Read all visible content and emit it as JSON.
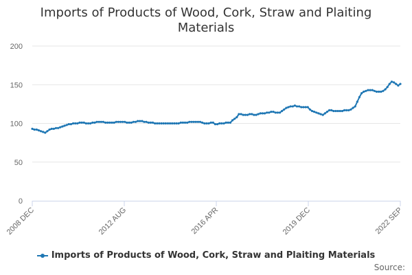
{
  "chart_data": {
    "type": "line",
    "title_line1": "Imports of Products of Wood, Cork, Straw and Plaiting",
    "title_line2": "Materials",
    "xlabel": "",
    "ylabel": "",
    "ylim": [
      0,
      200
    ],
    "yticks": [
      "0",
      "50",
      "100",
      "150",
      "200"
    ],
    "xticks": [
      "2008 DEC",
      "2012 AUG",
      "2016 APR",
      "2019 DEC",
      "2022 SEP"
    ],
    "grid": true,
    "legend_position": "bottom",
    "source_label": "Source:",
    "x_start": "2008 DEC",
    "x_end": "2022 SEP",
    "series": [
      {
        "name": "Imports of Products of Wood, Cork, Straw and Plaiting Materials",
        "color": "#1f77b4",
        "values": [
          93,
          92,
          92,
          91,
          90,
          89,
          88,
          90,
          92,
          93,
          93,
          94,
          94,
          95,
          96,
          97,
          98,
          99,
          99,
          100,
          100,
          100,
          101,
          101,
          101,
          100,
          100,
          100,
          101,
          101,
          102,
          102,
          102,
          102,
          101,
          101,
          101,
          101,
          101,
          102,
          102,
          102,
          102,
          102,
          101,
          101,
          101,
          102,
          102,
          103,
          103,
          103,
          102,
          102,
          101,
          101,
          101,
          100,
          100,
          100,
          100,
          100,
          100,
          100,
          100,
          100,
          100,
          100,
          100,
          101,
          101,
          101,
          101,
          102,
          102,
          102,
          102,
          102,
          102,
          101,
          100,
          100,
          100,
          101,
          101,
          99,
          99,
          100,
          100,
          100,
          101,
          101,
          101,
          104,
          106,
          108,
          112,
          112,
          111,
          111,
          111,
          112,
          112,
          111,
          111,
          112,
          113,
          113,
          113,
          114,
          114,
          115,
          115,
          114,
          114,
          114,
          116,
          118,
          120,
          121,
          122,
          122,
          123,
          122,
          122,
          121,
          121,
          121,
          121,
          118,
          116,
          115,
          114,
          113,
          112,
          111,
          113,
          115,
          117,
          117,
          116,
          116,
          116,
          116,
          116,
          117,
          117,
          117,
          118,
          120,
          122,
          128,
          134,
          139,
          141,
          142,
          143,
          143,
          143,
          142,
          141,
          141,
          141,
          142,
          144,
          147,
          151,
          154,
          153,
          151,
          149,
          151
        ]
      }
    ]
  }
}
